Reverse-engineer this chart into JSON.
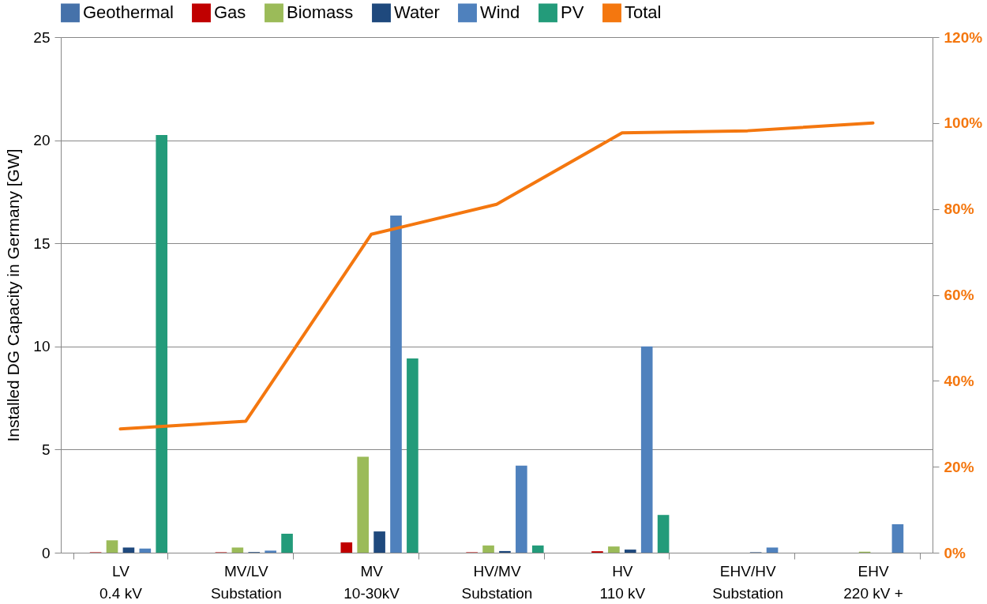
{
  "chart_data": {
    "type": "bar",
    "ylabel": "Installed DG Capacity in Germany [GW]",
    "categories": [
      "LV\n0.4 kV",
      "MV/LV\nSubstation",
      "MV\n10-30kV",
      "HV/MV\nSubstation",
      "HV\n110 kV",
      "EHV/HV\nSubstation",
      "EHV\n220 kV +"
    ],
    "series": [
      {
        "name": "Geothermal",
        "color": "#4672aa",
        "values": [
          0,
          0,
          0,
          0,
          0,
          0,
          0
        ]
      },
      {
        "name": "Gas",
        "color": "#c00000",
        "values": [
          0.02,
          0.02,
          0.5,
          0.02,
          0.07,
          0,
          0
        ]
      },
      {
        "name": "Biomass",
        "color": "#9bbb59",
        "values": [
          0.6,
          0.25,
          4.65,
          0.35,
          0.3,
          0,
          0.05
        ]
      },
      {
        "name": "Water",
        "color": "#1f497d",
        "values": [
          0.25,
          0.03,
          1.03,
          0.08,
          0.15,
          0.02,
          0
        ]
      },
      {
        "name": "Wind",
        "color": "#4f81bd",
        "values": [
          0.2,
          0.1,
          16.35,
          4.22,
          10.0,
          0.25,
          1.38
        ]
      },
      {
        "name": "PV",
        "color": "#239b7a",
        "values": [
          20.25,
          0.92,
          9.42,
          0.35,
          1.83,
          0,
          0
        ]
      },
      {
        "name": "Total",
        "type": "line",
        "axis": "y2",
        "color": "#f4770f",
        "values": [
          28.8,
          30.6,
          74.1,
          81.1,
          97.7,
          98.2,
          100
        ]
      }
    ],
    "ylim": [
      0,
      25
    ],
    "yticks": [
      0,
      5,
      10,
      15,
      20,
      25
    ],
    "y2lim": [
      0,
      120
    ],
    "y2ticks": [
      {
        "value": 0,
        "label": "0%"
      },
      {
        "value": 20,
        "label": "20%"
      },
      {
        "value": 40,
        "label": "40%"
      },
      {
        "value": 60,
        "label": "60%"
      },
      {
        "value": 80,
        "label": "80%"
      },
      {
        "value": 100,
        "label": "100%"
      },
      {
        "value": 120,
        "label": "120%"
      }
    ],
    "grid": "y",
    "legend": "top"
  }
}
